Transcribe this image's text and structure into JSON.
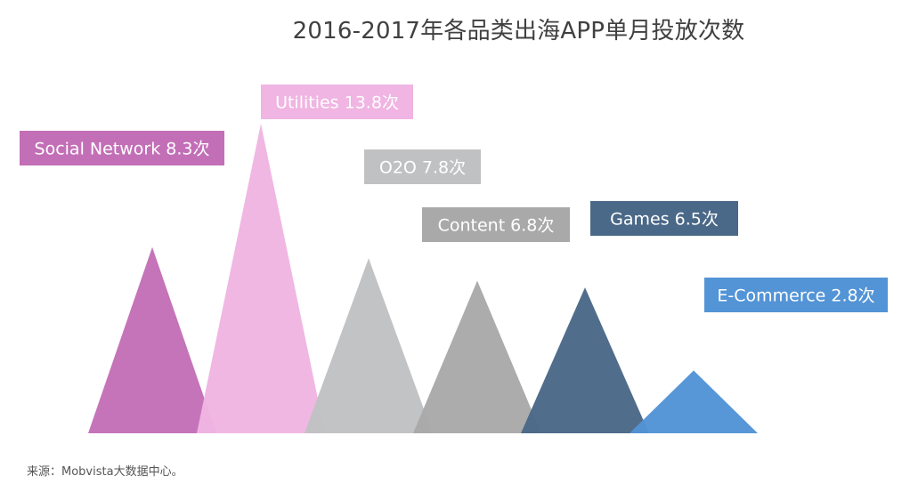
{
  "title": "2016-2017年各品类出海APP单月投放次数",
  "source": "来源：Mobvista大数据中心。",
  "chart_data": {
    "type": "bar",
    "title": "2016-2017年各品类出海APP单月投放次数",
    "unit": "次",
    "categories": [
      "Social Network",
      "Utilities",
      "O2O",
      "Content",
      "Games",
      "E-Commerce"
    ],
    "values": [
      8.3,
      13.8,
      7.8,
      6.8,
      6.5,
      2.8
    ],
    "labels": [
      "Social Network 8.3次",
      "Utilities 13.8次",
      "O2O 7.8次",
      "Content 6.8次",
      "Games 6.5次",
      "E-Commerce 2.8次"
    ],
    "colors": [
      "#c36fb7",
      "#f0b5e2",
      "#c0c1c3",
      "#a9a9a9",
      "#4a6887",
      "#5394d6"
    ],
    "grid": false,
    "legend": "none"
  }
}
